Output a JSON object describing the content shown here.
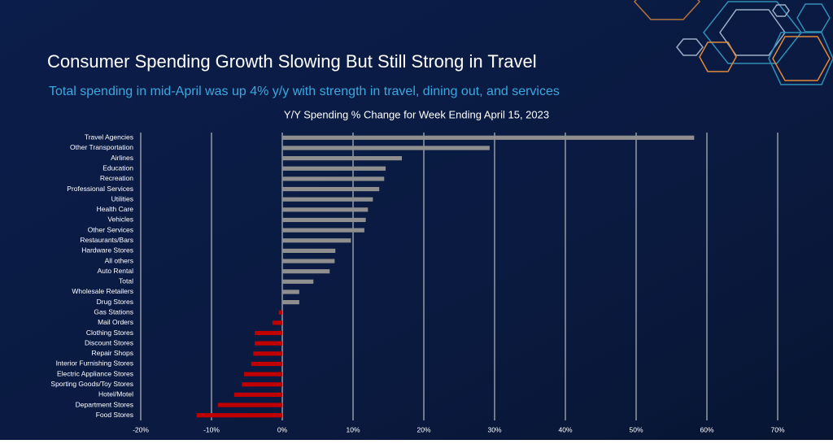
{
  "chart_data": {
    "type": "barh",
    "title": "Consumer Spending Growth Slowing But Still Strong in Travel",
    "subtitle": "Total spending in mid-April was up 4% y/y with strength in travel, dining out, and services",
    "chart_title": "Y/Y Spending % Change for Week Ending April 15, 2023",
    "categories": [
      "Travel Agencies",
      "Other Transportation",
      "Airlines",
      "Education",
      "Recreation",
      "Professional Services",
      "Utilities",
      "Health Care",
      "Vehicles",
      "Other Services",
      "Restaurants/Bars",
      "Hardware Stores",
      "All others",
      "Auto Rental",
      "Total",
      "Wholesale Retailers",
      "Drug Stores",
      "Gas Stations",
      "Mail Orders",
      "Clothing Stores",
      "Discount Stores",
      "Repair Shops",
      "Interior Furnishing Stores",
      "Electric Appliance Stores",
      "Sporting Goods/Toy Stores",
      "Hotel/Motel",
      "Department Stores",
      "Food Stores"
    ],
    "values": [
      58.2,
      29.3,
      16.9,
      14.6,
      14.4,
      13.7,
      12.8,
      12.1,
      11.8,
      11.6,
      9.7,
      7.5,
      7.4,
      6.7,
      4.4,
      2.4,
      2.4,
      -0.5,
      -1.4,
      -3.9,
      -3.9,
      -4.1,
      -4.4,
      -5.4,
      -5.7,
      -6.8,
      -9.1,
      -12.1
    ],
    "colors": {
      "positive": "#8f8f8f",
      "negative": "#c00000"
    },
    "xlim": [
      -20,
      70
    ],
    "xticks": [
      {
        "value": -20,
        "label": "-20%"
      },
      {
        "value": -10,
        "label": "-10%"
      },
      {
        "value": 0,
        "label": "0%"
      },
      {
        "value": 10,
        "label": "10%"
      },
      {
        "value": 20,
        "label": "20%"
      },
      {
        "value": 30,
        "label": "30%"
      },
      {
        "value": 40,
        "label": "40%"
      },
      {
        "value": 50,
        "label": "50%"
      },
      {
        "value": 60,
        "label": "60%"
      },
      {
        "value": 70,
        "label": "70%"
      }
    ],
    "grid": true
  }
}
